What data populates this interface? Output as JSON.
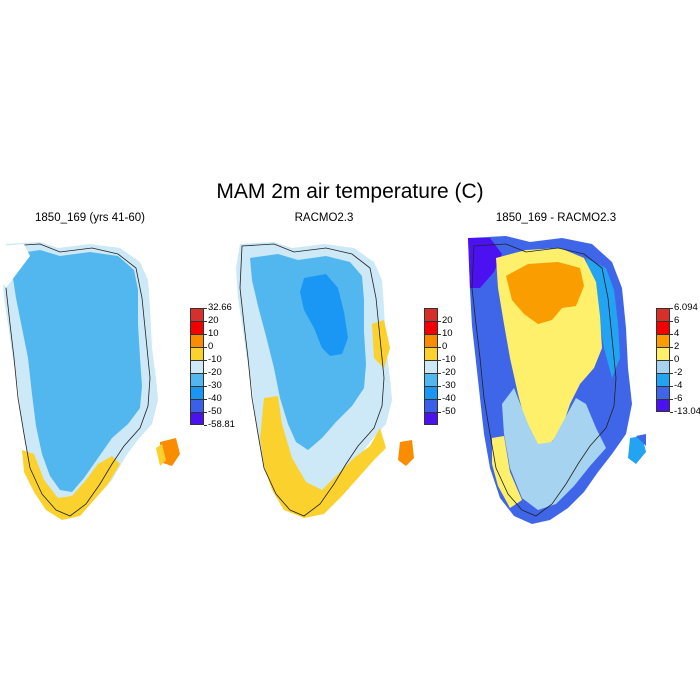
{
  "title": "MAM 2m air temperature (C)",
  "palette": {
    "p20": "#d7302b",
    "p10": "#f20000",
    "p0": "#fa8c00",
    "m10": "#fbd12e",
    "m20": "#cde8f6",
    "m30": "#52b6ef",
    "m40": "#1a97f5",
    "m50": "#3a5fe8",
    "m60": "#4b11f0"
  },
  "diffPalette": {
    "p6": "#d7302b",
    "p4": "#f20000",
    "p2": "#fa9d00",
    "p0": "#fef06a",
    "m2": "#a6d4f0",
    "m4": "#22a4f2",
    "m6": "#3f66e8",
    "m8": "#4b11f0"
  },
  "panels": [
    {
      "title": "1850_169 (yrs 41-60)",
      "colorbar": {
        "colors": [
          "#d7302b",
          "#f20000",
          "#fa8c00",
          "#fbd12e",
          "#cde8f6",
          "#52b6ef",
          "#1a97f5",
          "#3a5fe8",
          "#4b11f0"
        ],
        "labels": [
          "32.66",
          "20",
          "10",
          "0",
          "-10",
          "-20",
          "-30",
          "-40",
          "-50",
          "-58.81"
        ]
      }
    },
    {
      "title": "RACMO2.3",
      "colorbar": {
        "colors": [
          "#d7302b",
          "#f20000",
          "#fa8c00",
          "#fbd12e",
          "#cde8f6",
          "#52b6ef",
          "#1a97f5",
          "#3a5fe8",
          "#4b11f0"
        ],
        "labels": [
          "",
          "20",
          "10",
          "0",
          "-10",
          "-20",
          "-30",
          "-40",
          "-50",
          ""
        ]
      }
    },
    {
      "title": "1850_169 - RACMO2.3",
      "colorbar": {
        "colors": [
          "#d7302b",
          "#f20000",
          "#fa9d00",
          "#fef06a",
          "#a6d4f0",
          "#22a4f2",
          "#3f66e8",
          "#4b11f0"
        ],
        "labels": [
          "6.094",
          "6",
          "4",
          "2",
          "0",
          "-2",
          "-4",
          "-6",
          "-13.043"
        ]
      }
    }
  ]
}
